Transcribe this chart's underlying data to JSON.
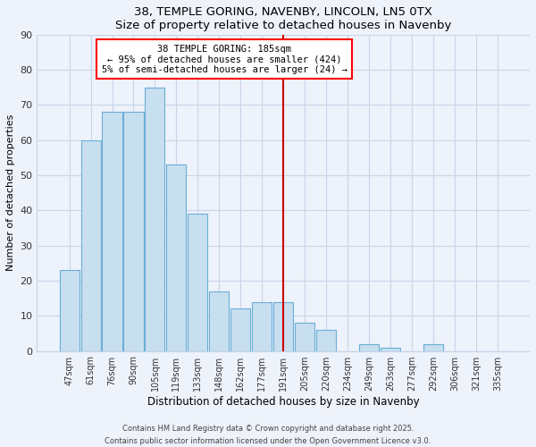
{
  "title1": "38, TEMPLE GORING, NAVENBY, LINCOLN, LN5 0TX",
  "title2": "Size of property relative to detached houses in Navenby",
  "xlabel": "Distribution of detached houses by size in Navenby",
  "ylabel": "Number of detached properties",
  "bar_labels": [
    "47sqm",
    "61sqm",
    "76sqm",
    "90sqm",
    "105sqm",
    "119sqm",
    "133sqm",
    "148sqm",
    "162sqm",
    "177sqm",
    "191sqm",
    "205sqm",
    "220sqm",
    "234sqm",
    "249sqm",
    "263sqm",
    "277sqm",
    "292sqm",
    "306sqm",
    "321sqm",
    "335sqm"
  ],
  "bar_values": [
    23,
    60,
    68,
    68,
    75,
    53,
    39,
    17,
    12,
    14,
    14,
    8,
    6,
    0,
    2,
    1,
    0,
    2,
    0,
    0,
    0
  ],
  "bar_color": "#c8dff0",
  "bar_edge_color": "#6baed6",
  "annotation_title": "38 TEMPLE GORING: 185sqm",
  "annotation_line1": "← 95% of detached houses are smaller (424)",
  "annotation_line2": "5% of semi-detached houses are larger (24) →",
  "vline_color": "#cc0000",
  "vline_x": 10.0,
  "ylim": [
    0,
    90
  ],
  "yticks": [
    0,
    10,
    20,
    30,
    40,
    50,
    60,
    70,
    80,
    90
  ],
  "footer1": "Contains HM Land Registry data © Crown copyright and database right 2025.",
  "footer2": "Contains public sector information licensed under the Open Government Licence v3.0.",
  "bg_color": "#edf2fb",
  "grid_color": "#c8d4e8"
}
